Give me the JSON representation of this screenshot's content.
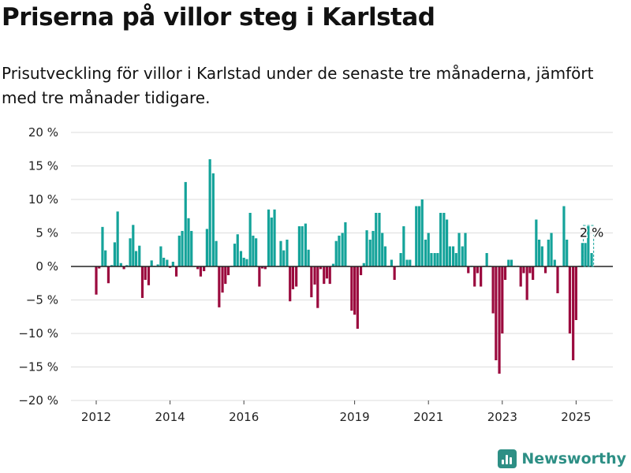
{
  "header": {
    "title": "Priserna på villor steg i Karlstad",
    "subtitle": "Prisutveckling för villor i Karlstad under de senaste tre månaderna, jämfört med tre månader tidigare."
  },
  "brand": {
    "name": "Newsworthy",
    "color": "#2d8f85"
  },
  "chart_data": {
    "type": "bar",
    "y_ticks": [
      20,
      15,
      10,
      5,
      0,
      -5,
      -10,
      -15,
      -20
    ],
    "y_tick_labels": [
      "20 %",
      "15 %",
      "10 %",
      "5 %",
      "0 %",
      "−5 %",
      "−10 %",
      "−15 %",
      "−20 %"
    ],
    "ylim": [
      -20,
      20
    ],
    "y_unit": "%",
    "x_ticks": [
      2012,
      2014,
      2016,
      2019,
      2021,
      2023,
      2025
    ],
    "x_start": 2012.0,
    "grid": true,
    "colors": {
      "positive": "#14a39a",
      "negative": "#9b0a3e",
      "highlight_outline": "#14a39a"
    },
    "annotation": {
      "text": "2 %",
      "value": 2
    },
    "series": [
      {
        "x": 2012.0,
        "value": -4.2
      },
      {
        "x": 2012.08,
        "value": -0.3
      },
      {
        "x": 2012.17,
        "value": 5.9
      },
      {
        "x": 2012.25,
        "value": 2.4
      },
      {
        "x": 2012.33,
        "value": -2.5
      },
      {
        "x": 2012.42,
        "value": 0.2
      },
      {
        "x": 2012.5,
        "value": 3.6
      },
      {
        "x": 2012.58,
        "value": 8.2
      },
      {
        "x": 2012.67,
        "value": 0.5
      },
      {
        "x": 2012.75,
        "value": -0.4
      },
      {
        "x": 2012.83,
        "value": 0.2
      },
      {
        "x": 2012.92,
        "value": 4.2
      },
      {
        "x": 2013.0,
        "value": 6.2
      },
      {
        "x": 2013.08,
        "value": 2.3
      },
      {
        "x": 2013.17,
        "value": 3.1
      },
      {
        "x": 2013.25,
        "value": -4.7
      },
      {
        "x": 2013.33,
        "value": -2.0
      },
      {
        "x": 2013.42,
        "value": -2.8
      },
      {
        "x": 2013.5,
        "value": 0.9
      },
      {
        "x": 2013.58,
        "value": 0.1
      },
      {
        "x": 2013.67,
        "value": 0.3
      },
      {
        "x": 2013.75,
        "value": 3.0
      },
      {
        "x": 2013.83,
        "value": 1.3
      },
      {
        "x": 2013.92,
        "value": 1.0
      },
      {
        "x": 2014.0,
        "value": -0.2
      },
      {
        "x": 2014.08,
        "value": 0.7
      },
      {
        "x": 2014.17,
        "value": -1.5
      },
      {
        "x": 2014.25,
        "value": 4.6
      },
      {
        "x": 2014.33,
        "value": 5.3
      },
      {
        "x": 2014.42,
        "value": 12.6
      },
      {
        "x": 2014.5,
        "value": 7.2
      },
      {
        "x": 2014.58,
        "value": 5.3
      },
      {
        "x": 2014.67,
        "value": 0.1
      },
      {
        "x": 2014.75,
        "value": -0.4
      },
      {
        "x": 2014.83,
        "value": -1.5
      },
      {
        "x": 2014.92,
        "value": -0.7
      },
      {
        "x": 2015.0,
        "value": 5.6
      },
      {
        "x": 2015.08,
        "value": 16.0
      },
      {
        "x": 2015.17,
        "value": 13.9
      },
      {
        "x": 2015.25,
        "value": 3.8
      },
      {
        "x": 2015.33,
        "value": -6.1
      },
      {
        "x": 2015.42,
        "value": -3.9
      },
      {
        "x": 2015.5,
        "value": -2.6
      },
      {
        "x": 2015.58,
        "value": -1.3
      },
      {
        "x": 2015.67,
        "value": 0.1
      },
      {
        "x": 2015.75,
        "value": 3.4
      },
      {
        "x": 2015.83,
        "value": 4.8
      },
      {
        "x": 2015.92,
        "value": 2.3
      },
      {
        "x": 2016.0,
        "value": 1.3
      },
      {
        "x": 2016.08,
        "value": 1.1
      },
      {
        "x": 2016.17,
        "value": 8.0
      },
      {
        "x": 2016.25,
        "value": 4.6
      },
      {
        "x": 2016.33,
        "value": 4.2
      },
      {
        "x": 2016.42,
        "value": -3.0
      },
      {
        "x": 2016.5,
        "value": -0.3
      },
      {
        "x": 2016.58,
        "value": -0.4
      },
      {
        "x": 2016.67,
        "value": 8.5
      },
      {
        "x": 2016.75,
        "value": 7.3
      },
      {
        "x": 2016.83,
        "value": 8.5
      },
      {
        "x": 2016.92,
        "value": 0.1
      },
      {
        "x": 2017.0,
        "value": 3.8
      },
      {
        "x": 2017.08,
        "value": 2.4
      },
      {
        "x": 2017.17,
        "value": 4.0
      },
      {
        "x": 2017.25,
        "value": -5.2
      },
      {
        "x": 2017.33,
        "value": -3.4
      },
      {
        "x": 2017.42,
        "value": -3.0
      },
      {
        "x": 2017.5,
        "value": 6.0
      },
      {
        "x": 2017.58,
        "value": 6.0
      },
      {
        "x": 2017.67,
        "value": 6.4
      },
      {
        "x": 2017.75,
        "value": 2.5
      },
      {
        "x": 2017.83,
        "value": -4.6
      },
      {
        "x": 2017.92,
        "value": -2.7
      },
      {
        "x": 2018.0,
        "value": -6.2
      },
      {
        "x": 2018.08,
        "value": -0.4
      },
      {
        "x": 2018.17,
        "value": -2.6
      },
      {
        "x": 2018.25,
        "value": -1.8
      },
      {
        "x": 2018.33,
        "value": -2.6
      },
      {
        "x": 2018.42,
        "value": 0.4
      },
      {
        "x": 2018.5,
        "value": 3.8
      },
      {
        "x": 2018.58,
        "value": 4.6
      },
      {
        "x": 2018.67,
        "value": 5.0
      },
      {
        "x": 2018.75,
        "value": 6.6
      },
      {
        "x": 2018.83,
        "value": 0.1
      },
      {
        "x": 2018.92,
        "value": -6.6
      },
      {
        "x": 2019.0,
        "value": -7.2
      },
      {
        "x": 2019.08,
        "value": -9.3
      },
      {
        "x": 2019.17,
        "value": -1.3
      },
      {
        "x": 2019.25,
        "value": 0.5
      },
      {
        "x": 2019.33,
        "value": 5.4
      },
      {
        "x": 2019.42,
        "value": 4.0
      },
      {
        "x": 2019.5,
        "value": 5.3
      },
      {
        "x": 2019.58,
        "value": 8.0
      },
      {
        "x": 2019.67,
        "value": 8.0
      },
      {
        "x": 2019.75,
        "value": 5.0
      },
      {
        "x": 2019.83,
        "value": 3.0
      },
      {
        "x": 2019.92,
        "value": 0.1
      },
      {
        "x": 2020.0,
        "value": 1.0
      },
      {
        "x": 2020.08,
        "value": -2.0
      },
      {
        "x": 2020.17,
        "value": 0.1
      },
      {
        "x": 2020.25,
        "value": 2.0
      },
      {
        "x": 2020.33,
        "value": 6.0
      },
      {
        "x": 2020.42,
        "value": 1.0
      },
      {
        "x": 2020.5,
        "value": 1.0
      },
      {
        "x": 2020.58,
        "value": 0.1
      },
      {
        "x": 2020.67,
        "value": 9.0
      },
      {
        "x": 2020.75,
        "value": 9.0
      },
      {
        "x": 2020.83,
        "value": 10.0
      },
      {
        "x": 2020.92,
        "value": 4.0
      },
      {
        "x": 2021.0,
        "value": 5.0
      },
      {
        "x": 2021.08,
        "value": 2.0
      },
      {
        "x": 2021.17,
        "value": 2.0
      },
      {
        "x": 2021.25,
        "value": 2.0
      },
      {
        "x": 2021.33,
        "value": 8.0
      },
      {
        "x": 2021.42,
        "value": 8.0
      },
      {
        "x": 2021.5,
        "value": 7.0
      },
      {
        "x": 2021.58,
        "value": 3.0
      },
      {
        "x": 2021.67,
        "value": 3.0
      },
      {
        "x": 2021.75,
        "value": 2.0
      },
      {
        "x": 2021.83,
        "value": 5.0
      },
      {
        "x": 2021.92,
        "value": 3.0
      },
      {
        "x": 2022.0,
        "value": 5.0
      },
      {
        "x": 2022.08,
        "value": -1.0
      },
      {
        "x": 2022.17,
        "value": 0.1
      },
      {
        "x": 2022.25,
        "value": -3.0
      },
      {
        "x": 2022.33,
        "value": -1.0
      },
      {
        "x": 2022.42,
        "value": -3.0
      },
      {
        "x": 2022.5,
        "value": 0.1
      },
      {
        "x": 2022.58,
        "value": 2.0
      },
      {
        "x": 2022.67,
        "value": 0.1
      },
      {
        "x": 2022.75,
        "value": -7.0
      },
      {
        "x": 2022.83,
        "value": -14.0
      },
      {
        "x": 2022.92,
        "value": -16.0
      },
      {
        "x": 2023.0,
        "value": -10.0
      },
      {
        "x": 2023.08,
        "value": -2.0
      },
      {
        "x": 2023.17,
        "value": 1.0
      },
      {
        "x": 2023.25,
        "value": 1.0
      },
      {
        "x": 2023.33,
        "value": 0.1
      },
      {
        "x": 2023.42,
        "value": 0.1
      },
      {
        "x": 2023.5,
        "value": -3.0
      },
      {
        "x": 2023.58,
        "value": -1.0
      },
      {
        "x": 2023.67,
        "value": -5.0
      },
      {
        "x": 2023.75,
        "value": -1.0
      },
      {
        "x": 2023.83,
        "value": -2.0
      },
      {
        "x": 2023.92,
        "value": 7.0
      },
      {
        "x": 2024.0,
        "value": 4.0
      },
      {
        "x": 2024.08,
        "value": 3.0
      },
      {
        "x": 2024.17,
        "value": -1.0
      },
      {
        "x": 2024.25,
        "value": 4.0
      },
      {
        "x": 2024.33,
        "value": 5.0
      },
      {
        "x": 2024.42,
        "value": 1.0
      },
      {
        "x": 2024.5,
        "value": -4.0
      },
      {
        "x": 2024.58,
        "value": 0.1
      },
      {
        "x": 2024.67,
        "value": 9.0
      },
      {
        "x": 2024.75,
        "value": 4.0
      },
      {
        "x": 2024.83,
        "value": -10.0
      },
      {
        "x": 2024.92,
        "value": -14.0
      },
      {
        "x": 2025.0,
        "value": -8.0
      },
      {
        "x": 2025.08,
        "value": 0.1
      },
      {
        "x": 2025.17,
        "value": 3.5
      },
      {
        "x": 2025.25,
        "value": 3.5
      },
      {
        "x": 2025.33,
        "value": 6.0
      },
      {
        "x": 2025.42,
        "value": 2.0
      }
    ]
  }
}
